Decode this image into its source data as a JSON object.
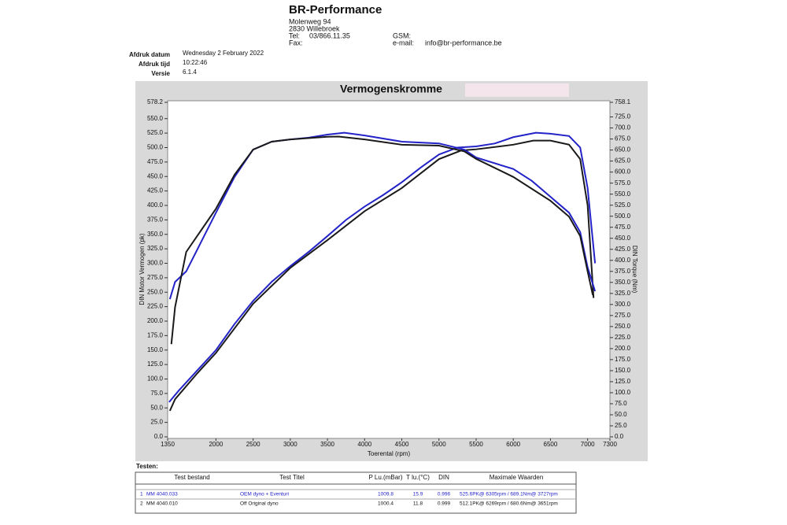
{
  "header": {
    "company": "BR-Performance",
    "street": "Molenweg 94",
    "city": "2830 Willebroek",
    "tel_label": "Tel:",
    "tel": "03/866.11.35",
    "fax_label": "Fax:",
    "gsm_label": "GSM:",
    "email_label": "e-mail:",
    "email": "info@br-performance.be"
  },
  "info": [
    {
      "label": "Afdruk datum",
      "value": "Wednesday 2 February 2022"
    },
    {
      "label": "Afdruk tijd",
      "value": "10:22:46"
    },
    {
      "label": "Versie",
      "value": "6.1.4"
    }
  ],
  "chart_data": {
    "type": "line",
    "title": "Vermogenskromme",
    "xlabel": "Toerental (rpm)",
    "ylabel": "DIN Motor Vermogen (pk)",
    "y2label": "DIN Torque (Nm)",
    "xlim": [
      1350,
      7300
    ],
    "xticks": [
      1350,
      2000,
      2500,
      3000,
      3500,
      4000,
      4500,
      5000,
      5500,
      6000,
      6500,
      7000,
      7300
    ],
    "ylim": [
      0,
      578.2
    ],
    "yticks": [
      {
        "value": 0,
        "label": "0.0"
      },
      {
        "value": 25,
        "label": "25.0"
      },
      {
        "value": 50,
        "label": "50.0"
      },
      {
        "value": 75,
        "label": "75.0"
      },
      {
        "value": 100,
        "label": "100.0"
      },
      {
        "value": 125,
        "label": "125.0"
      },
      {
        "value": 150,
        "label": "150.0"
      },
      {
        "value": 175,
        "label": "175.0"
      },
      {
        "value": 200,
        "label": "200.0"
      },
      {
        "value": 225,
        "label": "225.0"
      },
      {
        "value": 250,
        "label": "250.0"
      },
      {
        "value": 275,
        "label": "275.0"
      },
      {
        "value": 300,
        "label": "300.0"
      },
      {
        "value": 325,
        "label": "325.0"
      },
      {
        "value": 350,
        "label": "350.0"
      },
      {
        "value": 375,
        "label": "375.0"
      },
      {
        "value": 400,
        "label": "400.0"
      },
      {
        "value": 425,
        "label": "425.0"
      },
      {
        "value": 450,
        "label": "450.0"
      },
      {
        "value": 475,
        "label": "475.0"
      },
      {
        "value": 500,
        "label": "500.0"
      },
      {
        "value": 525,
        "label": "525.0"
      },
      {
        "value": 550,
        "label": "550.0"
      },
      578.2
    ],
    "y2lim": [
      0,
      758.1
    ],
    "y2ticks": [
      {
        "value": 0,
        "label": "0.0"
      },
      {
        "value": 25,
        "label": "25.0"
      },
      {
        "value": 50,
        "label": "50.0"
      },
      {
        "value": 75,
        "label": "75.0"
      },
      {
        "value": 100,
        "label": "100.0"
      },
      {
        "value": 125,
        "label": "125.0"
      },
      {
        "value": 150,
        "label": "150.0"
      },
      {
        "value": 175,
        "label": "175.0"
      },
      {
        "value": 200,
        "label": "200.0"
      },
      {
        "value": 225,
        "label": "225.0"
      },
      {
        "value": 250,
        "label": "250.0"
      },
      {
        "value": 275,
        "label": "275.0"
      },
      {
        "value": 300,
        "label": "300.0"
      },
      {
        "value": 325,
        "label": "325.0"
      },
      {
        "value": 350,
        "label": "350.0"
      },
      {
        "value": 375,
        "label": "375.0"
      },
      {
        "value": 400,
        "label": "400.0"
      },
      {
        "value": 425,
        "label": "425.0"
      },
      {
        "value": 450,
        "label": "450.0"
      },
      {
        "value": 475,
        "label": "475.0"
      },
      {
        "value": 500,
        "label": "500.0"
      },
      {
        "value": 525,
        "label": "525.0"
      },
      {
        "value": 550,
        "label": "550.0"
      },
      {
        "value": 575,
        "label": "575.0"
      },
      {
        "value": 600,
        "label": "600.0"
      },
      {
        "value": 625,
        "label": "625.0"
      },
      {
        "value": 650,
        "label": "650.0"
      },
      {
        "value": 675,
        "label": "675.0"
      },
      {
        "value": 700,
        "label": "700.0"
      },
      {
        "value": 725,
        "label": "725.0"
      },
      758.1
    ],
    "series": [
      {
        "color": "#2323c8",
        "x": [
          1370,
          1500,
          1750,
          2000,
          2250,
          2500,
          2750,
          3000,
          3250,
          3500,
          3750,
          4000,
          4250,
          4500,
          4750,
          5000,
          5250,
          5500,
          5750,
          6000,
          6305,
          6500,
          6750,
          6900,
          7000,
          7100
        ],
        "values": [
          60,
          80,
          115,
          150,
          195,
          235,
          268,
          295,
          320,
          347,
          375,
          398,
          418,
          440,
          465,
          488,
          500,
          502,
          507,
          518,
          525.6,
          524,
          520,
          500,
          430,
          300
        ]
      },
      {
        "color": "#1a1a1a",
        "x": [
          1380,
          1450,
          1750,
          2000,
          2500,
          3000,
          3500,
          4000,
          4500,
          5000,
          5300,
          5500,
          6000,
          6269,
          6500,
          6750,
          6900,
          7000,
          7080
        ],
        "values": [
          45,
          65,
          110,
          145,
          230,
          292,
          340,
          390,
          430,
          480,
          495,
          497,
          505,
          512.1,
          512,
          505,
          480,
          400,
          240
        ]
      },
      {
        "color": "#2323c8",
        "axis": "y2",
        "x": [
          1380,
          1450,
          1600,
          2000,
          2250,
          2500,
          2750,
          3000,
          3250,
          3500,
          3727,
          4000,
          4500,
          5000,
          5340,
          5500,
          6000,
          6250,
          6500,
          6750,
          6900,
          7000,
          7100
        ],
        "values": [
          312,
          351,
          375,
          508,
          589,
          651,
          669,
          674,
          678,
          685,
          689.1,
          683,
          669,
          665,
          651,
          633,
          607,
          580,
          544,
          508,
          464,
          384,
          330
        ]
      },
      {
        "color": "#1a1a1a",
        "axis": "y2",
        "x": [
          1400,
          1450,
          1600,
          2000,
          2250,
          2500,
          2750,
          3000,
          3500,
          3651,
          4000,
          4500,
          5000,
          5340,
          5500,
          6000,
          6500,
          6750,
          6900,
          7000,
          7070
        ],
        "values": [
          210,
          294,
          419,
          517,
          594,
          651,
          669,
          674,
          680,
          680.6,
          674,
          662,
          660,
          647,
          630,
          589,
          535,
          499,
          455,
          375,
          321
        ]
      }
    ]
  },
  "table": {
    "title": "Testen:",
    "headers": [
      "Test bestand",
      "Test Titel",
      "P Lu.(mBar)",
      "T lu.(°C)",
      "DIN",
      "Maximale Waarden"
    ],
    "rows": [
      [
        "1",
        "MM 4040.033",
        "OEM dyno + Eventuri",
        "1009.8",
        "15.9",
        "0.996",
        "525.6PK@ 6305rpm / 689.1Nm@ 3727rpm"
      ],
      [
        "2",
        "MM 4040.010",
        "Off Original dyno",
        "1000.4",
        "11.8",
        "0.999",
        "512.1PK@ 6269rpm / 680.6Nm@ 3651rpm"
      ]
    ]
  }
}
